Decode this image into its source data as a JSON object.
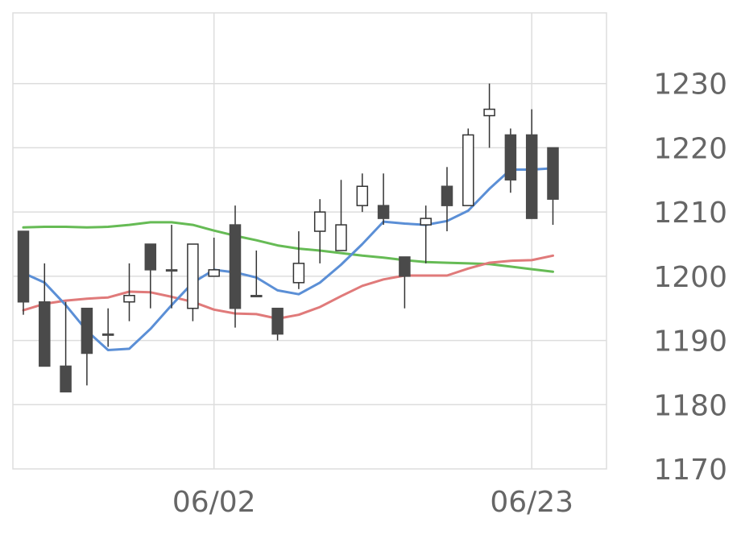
{
  "chart_data": {
    "type": "candlestick",
    "x_tick_labels": [
      "06/02",
      "06/23"
    ],
    "y_ticks": [
      1170,
      1180,
      1190,
      1200,
      1210,
      1220,
      1230
    ],
    "ylim": [
      1170,
      1241
    ],
    "grid": true,
    "colors": {
      "up_body": "#ffffff",
      "down_body": "#4a4a4a",
      "wick": "#333333",
      "ma_short": "#5b8fd6",
      "ma_mid": "#e07a7a",
      "ma_long": "#66bb55",
      "grid": "#dddddd",
      "axis_text": "#666666"
    },
    "candles": [
      {
        "open": 1207,
        "high": 1207,
        "low": 1194,
        "close": 1196
      },
      {
        "open": 1196,
        "high": 1202,
        "low": 1186,
        "close": 1186
      },
      {
        "open": 1186,
        "high": 1196,
        "low": 1182,
        "close": 1182
      },
      {
        "open": 1195,
        "high": 1195,
        "low": 1183,
        "close": 1188
      },
      {
        "open": 1191,
        "high": 1195,
        "low": 1189,
        "close": 1191
      },
      {
        "open": 1196,
        "high": 1202,
        "low": 1193,
        "close": 1197
      },
      {
        "open": 1205,
        "high": 1205,
        "low": 1195,
        "close": 1201
      },
      {
        "open": 1201,
        "high": 1208,
        "low": 1195,
        "close": 1201
      },
      {
        "open": 1195,
        "high": 1205,
        "low": 1193,
        "close": 1205
      },
      {
        "open": 1200,
        "high": 1206,
        "low": 1200,
        "close": 1201
      },
      {
        "open": 1208,
        "high": 1211,
        "low": 1192,
        "close": 1195
      },
      {
        "open": 1197,
        "high": 1204,
        "low": 1197,
        "close": 1197
      },
      {
        "open": 1195,
        "high": 1195,
        "low": 1190,
        "close": 1191
      },
      {
        "open": 1199,
        "high": 1207,
        "low": 1198,
        "close": 1202
      },
      {
        "open": 1207,
        "high": 1212,
        "low": 1202,
        "close": 1210
      },
      {
        "open": 1204,
        "high": 1215,
        "low": 1204,
        "close": 1208
      },
      {
        "open": 1211,
        "high": 1216,
        "low": 1210,
        "close": 1214
      },
      {
        "open": 1211,
        "high": 1216,
        "low": 1208,
        "close": 1209
      },
      {
        "open": 1203,
        "high": 1203,
        "low": 1195,
        "close": 1200
      },
      {
        "open": 1208,
        "high": 1211,
        "low": 1202,
        "close": 1209
      },
      {
        "open": 1214,
        "high": 1217,
        "low": 1207,
        "close": 1211
      },
      {
        "open": 1211,
        "high": 1223,
        "low": 1211,
        "close": 1222
      },
      {
        "open": 1225,
        "high": 1230,
        "low": 1220,
        "close": 1226
      },
      {
        "open": 1222,
        "high": 1223,
        "low": 1213,
        "close": 1215
      },
      {
        "open": 1222,
        "high": 1226,
        "low": 1209,
        "close": 1209
      },
      {
        "open": 1220,
        "high": 1220,
        "low": 1208,
        "close": 1212
      }
    ],
    "ma_short": [
      1200.5,
      1199,
      1195.5,
      1191.5,
      1188.5,
      1188.7,
      1191.8,
      1195.5,
      1199,
      1201,
      1200.6,
      1199.8,
      1197.8,
      1197.2,
      1199,
      1201.8,
      1205,
      1208.5,
      1208.2,
      1208,
      1208.6,
      1210.2,
      1213.6,
      1216.6,
      1216.6,
      1216.8
    ],
    "ma_mid": [
      1194.7,
      1195.7,
      1196.2,
      1196.5,
      1196.7,
      1197.6,
      1197.5,
      1196.8,
      1196,
      1194.8,
      1194.2,
      1194.1,
      1193.4,
      1194,
      1195.2,
      1196.9,
      1198.5,
      1199.5,
      1200.1,
      1200.1,
      1200.1,
      1201.2,
      1202.1,
      1202.4,
      1202.5,
      1203.2
    ],
    "ma_long": [
      1207.6,
      1207.7,
      1207.7,
      1207.6,
      1207.7,
      1208,
      1208.4,
      1208.4,
      1208,
      1207.1,
      1206.3,
      1205.6,
      1204.8,
      1204.3,
      1204,
      1203.6,
      1203.2,
      1202.9,
      1202.5,
      1202.2,
      1202.1,
      1202,
      1201.9,
      1201.5,
      1201.1,
      1200.7
    ]
  }
}
